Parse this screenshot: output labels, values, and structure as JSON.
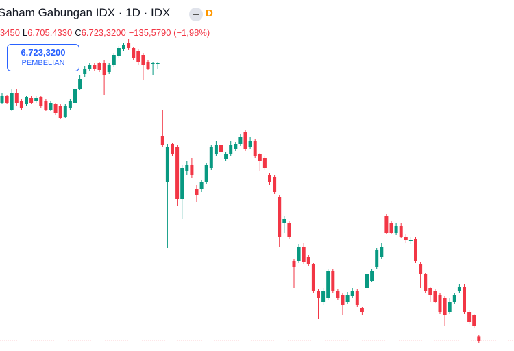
{
  "header": {
    "title": "Saham Gabungan IDX · 1D · IDX",
    "badge": "D",
    "open_fragment": "3450",
    "low_label": "L",
    "low": "6.705,4330",
    "close_label": "C",
    "close": "6.723,3200",
    "change": "−135,5790 (−1,98%)"
  },
  "trade_button": {
    "price": "6.723,3200",
    "action": "PEMBELIAN"
  },
  "chart_data": {
    "type": "candlestick",
    "up_color": "#089981",
    "down_color": "#f23645",
    "ylim": [
      6650,
      9210
    ],
    "ohlc": [
      [
        8460,
        8535,
        8450,
        8510
      ],
      [
        8510,
        8520,
        8450,
        8460
      ],
      [
        8410,
        8560,
        8400,
        8535
      ],
      [
        8535,
        8560,
        8435,
        8460
      ],
      [
        8470,
        8485,
        8410,
        8420
      ],
      [
        8450,
        8510,
        8435,
        8500
      ],
      [
        8495,
        8510,
        8450,
        8460
      ],
      [
        8470,
        8510,
        8460,
        8495
      ],
      [
        8500,
        8510,
        8420,
        8435
      ],
      [
        8470,
        8485,
        8400,
        8410
      ],
      [
        8410,
        8470,
        8400,
        8460
      ],
      [
        8450,
        8460,
        8370,
        8385
      ],
      [
        8435,
        8450,
        8340,
        8350
      ],
      [
        8360,
        8450,
        8350,
        8435
      ],
      [
        8420,
        8485,
        8410,
        8470
      ],
      [
        8460,
        8570,
        8450,
        8560
      ],
      [
        8560,
        8660,
        8550,
        8635
      ],
      [
        8670,
        8725,
        8650,
        8710
      ],
      [
        8710,
        8750,
        8695,
        8735
      ],
      [
        8735,
        8750,
        8690,
        8710
      ],
      [
        8750,
        8760,
        8685,
        8700
      ],
      [
        8750,
        8770,
        8520,
        8660
      ],
      [
        8685,
        8750,
        8670,
        8735
      ],
      [
        8735,
        8820,
        8720,
        8810
      ],
      [
        8800,
        8875,
        8785,
        8860
      ],
      [
        8850,
        8900,
        8835,
        8885
      ],
      [
        8900,
        8925,
        8845,
        8860
      ],
      [
        8860,
        8870,
        8770,
        8785
      ],
      [
        8835,
        8850,
        8735,
        8760
      ],
      [
        8810,
        8820,
        8630,
        8735
      ],
      [
        8760,
        8770,
        8700,
        8710
      ],
      [
        8740,
        8760,
        8660,
        8750
      ],
      [
        8740,
        8760,
        8710,
        8750
      ],
      [
        8220,
        8410,
        8135,
        8150
      ],
      [
        7885,
        8160,
        7400,
        8135
      ],
      [
        8160,
        8170,
        8070,
        8085
      ],
      [
        8135,
        8150,
        7710,
        7760
      ],
      [
        7760,
        8010,
        7610,
        7985
      ],
      [
        7960,
        8035,
        7935,
        8010
      ],
      [
        8010,
        8060,
        7910,
        7935
      ],
      [
        7835,
        7860,
        7735,
        7785
      ],
      [
        7835,
        7900,
        7810,
        7885
      ],
      [
        7885,
        8020,
        7870,
        8010
      ],
      [
        7985,
        8150,
        7970,
        8135
      ],
      [
        8085,
        8185,
        8070,
        8150
      ],
      [
        8150,
        8160,
        8060,
        8100
      ],
      [
        8050,
        8100,
        8035,
        8085
      ],
      [
        8085,
        8185,
        8070,
        8150
      ],
      [
        8120,
        8175,
        8110,
        8160
      ],
      [
        8160,
        8230,
        8145,
        8210
      ],
      [
        8245,
        8260,
        8110,
        8120
      ],
      [
        8135,
        8210,
        8120,
        8185
      ],
      [
        8185,
        8195,
        8060,
        8070
      ],
      [
        8085,
        8095,
        7960,
        8035
      ],
      [
        8060,
        8070,
        7970,
        7985
      ],
      [
        7935,
        7950,
        7860,
        7885
      ],
      [
        7920,
        7935,
        7795,
        7810
      ],
      [
        7770,
        7785,
        7410,
        7485
      ],
      [
        7585,
        7635,
        7510,
        7610
      ],
      [
        7585,
        7600,
        7470,
        7485
      ],
      [
        7310,
        7320,
        7110,
        7260
      ],
      [
        7310,
        7430,
        7295,
        7410
      ],
      [
        7410,
        7435,
        7285,
        7300
      ],
      [
        7335,
        7350,
        7270,
        7285
      ],
      [
        7285,
        7295,
        7070,
        7085
      ],
      [
        7085,
        7100,
        6885,
        7035
      ],
      [
        7010,
        7110,
        6985,
        7085
      ],
      [
        7035,
        7250,
        7020,
        7235
      ],
      [
        7235,
        7250,
        7070,
        7085
      ],
      [
        7085,
        7100,
        7020,
        7035
      ],
      [
        7060,
        7070,
        6910,
        6985
      ],
      [
        7010,
        7080,
        6995,
        7060
      ],
      [
        7050,
        7110,
        7035,
        7085
      ],
      [
        7085,
        7100,
        6970,
        6985
      ],
      [
        6960,
        6970,
        6910,
        6935
      ],
      [
        7110,
        7220,
        7100,
        7210
      ],
      [
        7160,
        7250,
        7150,
        7235
      ],
      [
        7260,
        7400,
        7250,
        7385
      ],
      [
        7335,
        7435,
        7320,
        7410
      ],
      [
        7635,
        7650,
        7500,
        7510
      ],
      [
        7585,
        7600,
        7500,
        7510
      ],
      [
        7510,
        7580,
        7495,
        7560
      ],
      [
        7560,
        7580,
        7475,
        7485
      ],
      [
        7485,
        7500,
        7435,
        7460
      ],
      [
        7450,
        7480,
        7430,
        7460
      ],
      [
        7470,
        7485,
        7295,
        7310
      ],
      [
        7285,
        7300,
        7110,
        7210
      ],
      [
        7210,
        7220,
        7070,
        7085
      ],
      [
        7110,
        7120,
        7010,
        7060
      ],
      [
        7085,
        7100,
        7000,
        7010
      ],
      [
        7060,
        7070,
        6920,
        6935
      ],
      [
        7035,
        7050,
        6835,
        6910
      ],
      [
        6935,
        7035,
        6920,
        7010
      ],
      [
        7010,
        7070,
        6995,
        7060
      ],
      [
        7085,
        7140,
        7070,
        7120
      ],
      [
        7120,
        7140,
        6920,
        6935
      ],
      [
        6935,
        6950,
        6850,
        6860
      ],
      [
        6910,
        6920,
        6820,
        6835
      ],
      [
        6758,
        6765,
        6705.43,
        6723.32
      ]
    ]
  }
}
